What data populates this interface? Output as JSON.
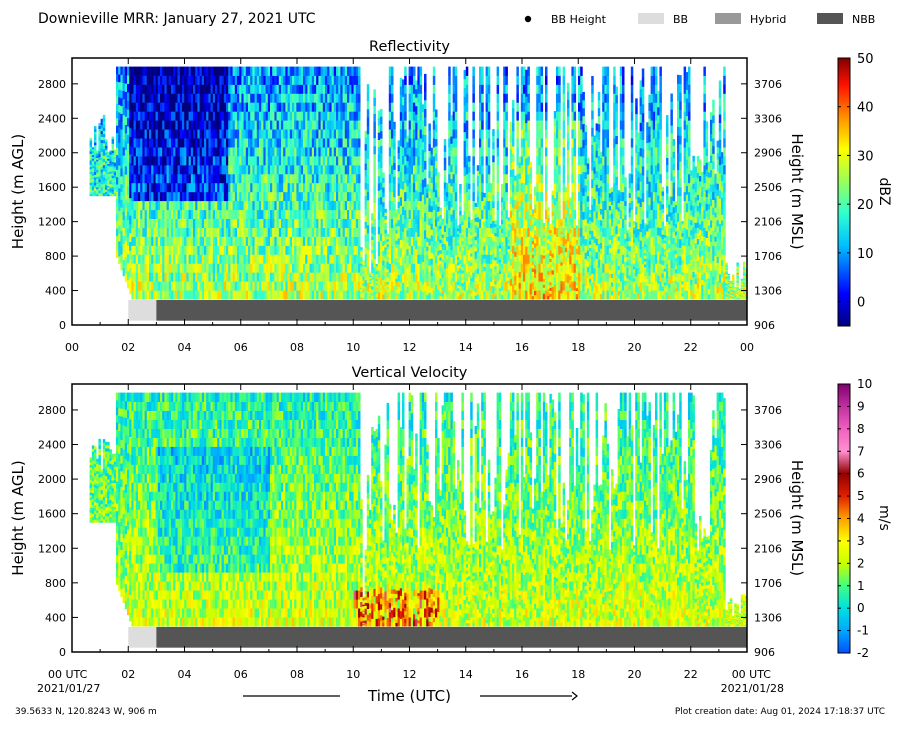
{
  "header": {
    "title": "Downieville MRR:  January 27, 2021 UTC",
    "legend": [
      {
        "label": "BB Height",
        "color": "#000000",
        "kind": "dot"
      },
      {
        "label": "BB",
        "color": "#dddddd",
        "kind": "box"
      },
      {
        "label": "Hybrid",
        "color": "#999999",
        "kind": "box"
      },
      {
        "label": "NBB",
        "color": "#555555",
        "kind": "box"
      }
    ]
  },
  "chart_data": [
    {
      "type": "heatmap",
      "title": "Reflectivity",
      "ylabel": "Height (m AGL)",
      "y2label": "Height (m MSL)",
      "xlim": [
        0,
        24
      ],
      "ylim": [
        0,
        3100
      ],
      "xticks": [
        "00",
        "02",
        "04",
        "06",
        "08",
        "10",
        "12",
        "14",
        "16",
        "18",
        "20",
        "22",
        "00"
      ],
      "yticks": [
        0,
        400,
        800,
        1200,
        1600,
        2000,
        2400,
        2800
      ],
      "y2ticks": [
        906,
        1306,
        1706,
        2106,
        2506,
        2906,
        3306,
        3706
      ],
      "colorbar": {
        "label": "dBZ",
        "min": -5,
        "max": 50,
        "ticks": [
          0,
          10,
          20,
          30,
          40,
          50
        ],
        "colormap": "jet"
      },
      "bb_class": [
        {
          "start": 2.0,
          "end": 3.0,
          "class": "BB"
        },
        {
          "start": 3.0,
          "end": 24.0,
          "class": "NBB"
        }
      ]
    },
    {
      "type": "heatmap",
      "title": "Vertical Velocity",
      "ylabel": "Height (m AGL)",
      "y2label": "Height (m MSL)",
      "xlabel": "Time (UTC)",
      "xlim": [
        0,
        24
      ],
      "ylim": [
        0,
        3100
      ],
      "xticks": [
        "00 UTC",
        "02",
        "04",
        "06",
        "08",
        "10",
        "12",
        "14",
        "16",
        "18",
        "20",
        "22",
        "00 UTC"
      ],
      "xdates": [
        "2021/01/27",
        "2021/01/28"
      ],
      "yticks": [
        0,
        400,
        800,
        1200,
        1600,
        2000,
        2400,
        2800
      ],
      "y2ticks": [
        906,
        1306,
        1706,
        2106,
        2506,
        2906,
        3306,
        3706
      ],
      "colorbar": {
        "label": "m/s",
        "min": -2,
        "max": 10,
        "ticks": [
          -2,
          -1,
          0,
          1,
          2,
          3,
          4,
          5,
          6,
          7,
          8,
          9,
          10
        ],
        "colormap": "velocity"
      },
      "bb_class": [
        {
          "start": 2.0,
          "end": 3.0,
          "class": "BB"
        },
        {
          "start": 3.0,
          "end": 24.0,
          "class": "NBB"
        }
      ]
    }
  ],
  "footer": {
    "location": "39.5633 N, 120.8243 W, 906 m",
    "creation": "Plot creation date: Aug 01, 2024 17:18:37 UTC"
  }
}
